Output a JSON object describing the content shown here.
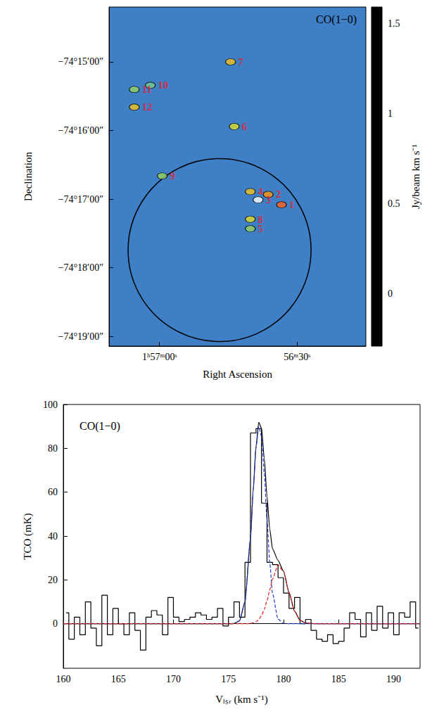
{
  "chart_data": [
    {
      "type": "map",
      "title": "CO(1−0)",
      "x_label": "Right Ascension",
      "y_label": "Declination",
      "xlim": [
        7031,
        6975
      ],
      "xticks": [
        {
          "value": 7020,
          "label": "1ʰ57ᵐ00ˢ"
        },
        {
          "value": 6990,
          "label": "56ᵐ30ˢ"
        }
      ],
      "ylim": [
        -74.319,
        -74.2367
      ],
      "yticks": [
        {
          "value": -74.25,
          "label": "−74°15′00″"
        },
        {
          "value": -74.266667,
          "label": "−74°16′00″"
        },
        {
          "value": -74.283333,
          "label": "−74°17′00″"
        },
        {
          "value": -74.3,
          "label": "−74°18′00″"
        },
        {
          "value": -74.316667,
          "label": "−74°19′00″"
        }
      ],
      "colorbar": {
        "label": "Jy/beam km s⁻¹",
        "range": [
          -0.29,
          1.59
        ],
        "ticks": [
          0,
          0.5,
          1,
          1.5
        ]
      },
      "clumps": [
        {
          "label": "1",
          "ra": 6993.4,
          "dec": -74.2847,
          "intensity": 1.1
        },
        {
          "label": "2",
          "ra": 6996.3,
          "dec": -74.2822,
          "intensity": 1.0
        },
        {
          "label": "3",
          "ra": 6998.5,
          "dec": -74.2835,
          "intensity": 1.6
        },
        {
          "label": "4",
          "ra": 7000.2,
          "dec": -74.2815,
          "intensity": 0.9
        },
        {
          "label": "5",
          "ra": 7000.2,
          "dec": -74.2905,
          "intensity": 0.6
        },
        {
          "label": "6",
          "ra": 7003.7,
          "dec": -74.2657,
          "intensity": 0.8
        },
        {
          "label": "7",
          "ra": 7004.5,
          "dec": -74.25,
          "intensity": 0.9
        },
        {
          "label": "8",
          "ra": 7000.2,
          "dec": -74.2882,
          "intensity": 0.8
        },
        {
          "label": "9",
          "ra": 7019.4,
          "dec": -74.2777,
          "intensity": 0.6
        },
        {
          "label": "10",
          "ra": 7022.0,
          "dec": -74.2557,
          "intensity": 0.5
        },
        {
          "label": "11",
          "ra": 7025.5,
          "dec": -74.2567,
          "intensity": 0.6
        },
        {
          "label": "12",
          "ra": 7025.5,
          "dec": -74.261,
          "intensity": 0.9
        }
      ],
      "circle": {
        "ra": 7006.9,
        "dec": -74.2957,
        "radius": 0.0222
      }
    },
    {
      "type": "line",
      "title": "CO(1−0)",
      "x_label": "Vₗₛᵣ (km s⁻¹)",
      "y_label": "TCO (mK)",
      "xlim": [
        160,
        192.4
      ],
      "xticks": [
        160,
        165,
        170,
        175,
        180,
        185,
        190
      ],
      "ylim": [
        -20.3,
        100
      ],
      "yticks": [
        0,
        20,
        40,
        60,
        80,
        100
      ],
      "series": [
        {
          "color": "#000000",
          "line_style": "steps",
          "x": [
            160.25,
            160.75,
            161.25,
            161.75,
            162.25,
            162.75,
            163.25,
            163.75,
            164.25,
            164.75,
            165.25,
            165.75,
            166.25,
            166.75,
            167.25,
            167.75,
            168.25,
            168.75,
            169.25,
            169.75,
            170.25,
            170.75,
            171.25,
            171.75,
            172.25,
            172.75,
            173.25,
            173.75,
            174.25,
            174.75,
            175.25,
            175.75,
            176.25,
            176.75,
            177.25,
            177.75,
            178.25,
            178.75,
            179.25,
            179.75,
            180.25,
            180.75,
            181.25,
            181.75,
            182.25,
            182.75,
            183.25,
            183.75,
            184.25,
            184.75,
            185.25,
            185.75,
            186.25,
            186.75,
            187.25,
            187.75,
            188.25,
            188.75,
            189.25,
            189.75,
            190.25,
            190.75,
            191.25,
            191.75,
            192.25
          ],
          "values": [
            5,
            -7,
            3,
            -5,
            10,
            -2,
            -10,
            13,
            -5,
            7,
            0,
            -5,
            5,
            -3,
            -12,
            3,
            6,
            4,
            -5,
            12,
            3,
            1,
            2,
            3,
            5,
            4,
            2,
            3,
            7,
            -1,
            3,
            10,
            3,
            28,
            87,
            89,
            55,
            28,
            27,
            21,
            14,
            7,
            12,
            0,
            2,
            -3,
            -7,
            -8,
            -5,
            -9,
            -8,
            -2,
            5,
            2,
            -6,
            5,
            -3,
            8,
            -2,
            5,
            -5,
            5,
            3,
            10,
            -2
          ]
        },
        {
          "color": "#000000",
          "line_style": "solid",
          "x": [
            160,
            174,
            175,
            175.5,
            176,
            176.5,
            177,
            177.25,
            177.5,
            177.75,
            178,
            178.25,
            178.5,
            178.75,
            179,
            179.5,
            180,
            180.5,
            181,
            181.5,
            182,
            183,
            192.4
          ],
          "values": [
            0,
            0,
            0,
            0.1,
            1.3,
            10,
            39.1,
            61.4,
            80.9,
            91.9,
            89.2,
            75.5,
            58.1,
            43.2,
            34.2,
            28.9,
            24,
            14.3,
            5.8,
            1.6,
            0.3,
            0,
            0
          ]
        },
        {
          "color": "#1f3fd0",
          "line_style": "dashed",
          "x": [
            160,
            174,
            175,
            175.5,
            176,
            176.5,
            177,
            177.25,
            177.5,
            177.75,
            178,
            178.25,
            178.5,
            178.75,
            179,
            179.5,
            180,
            180.5,
            181,
            181.5,
            182,
            183,
            192.4
          ],
          "values": [
            0,
            0,
            0,
            0.1,
            1.3,
            10,
            39,
            61,
            80,
            90,
            85.5,
            69,
            47.6,
            27.8,
            13.8,
            2.1,
            0.2,
            0,
            0,
            0,
            0,
            0,
            0
          ]
        },
        {
          "color": "#e02020",
          "line_style": "dashed",
          "x": [
            160,
            174,
            175,
            175.5,
            176,
            176.5,
            177,
            177.25,
            177.5,
            177.75,
            178,
            178.25,
            178.5,
            178.75,
            179,
            179.5,
            180,
            180.5,
            181,
            181.5,
            182,
            183,
            192.4
          ],
          "values": [
            0,
            0,
            0,
            0,
            0,
            0,
            0.1,
            0.4,
            0.9,
            1.9,
            3.7,
            6.5,
            10.5,
            15.4,
            20.4,
            26.8,
            23.8,
            14.3,
            5.8,
            1.6,
            0.3,
            0,
            0
          ]
        }
      ]
    }
  ]
}
